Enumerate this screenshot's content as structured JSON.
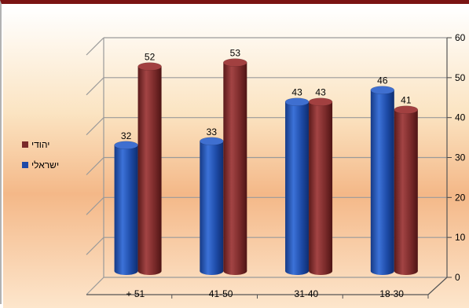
{
  "chart_data": {
    "type": "bar",
    "categories": [
      "+ 51",
      "41-50",
      "31-40",
      "18-30"
    ],
    "series": [
      {
        "name": "ישראלי",
        "values": [
          32,
          33,
          43,
          46
        ],
        "color": "#1f4aa8"
      },
      {
        "name": "יהודי",
        "values": [
          52,
          53,
          43,
          41
        ],
        "color": "#7a2a2a"
      }
    ],
    "ylim": [
      0,
      60
    ],
    "yticks": [
      0,
      10,
      20,
      30,
      40,
      50,
      60
    ],
    "y_axis_position": "right",
    "legend_position": "left",
    "grid": true,
    "background": [
      "#ffffff",
      "#f7d3a0",
      "#f2b07a"
    ]
  }
}
